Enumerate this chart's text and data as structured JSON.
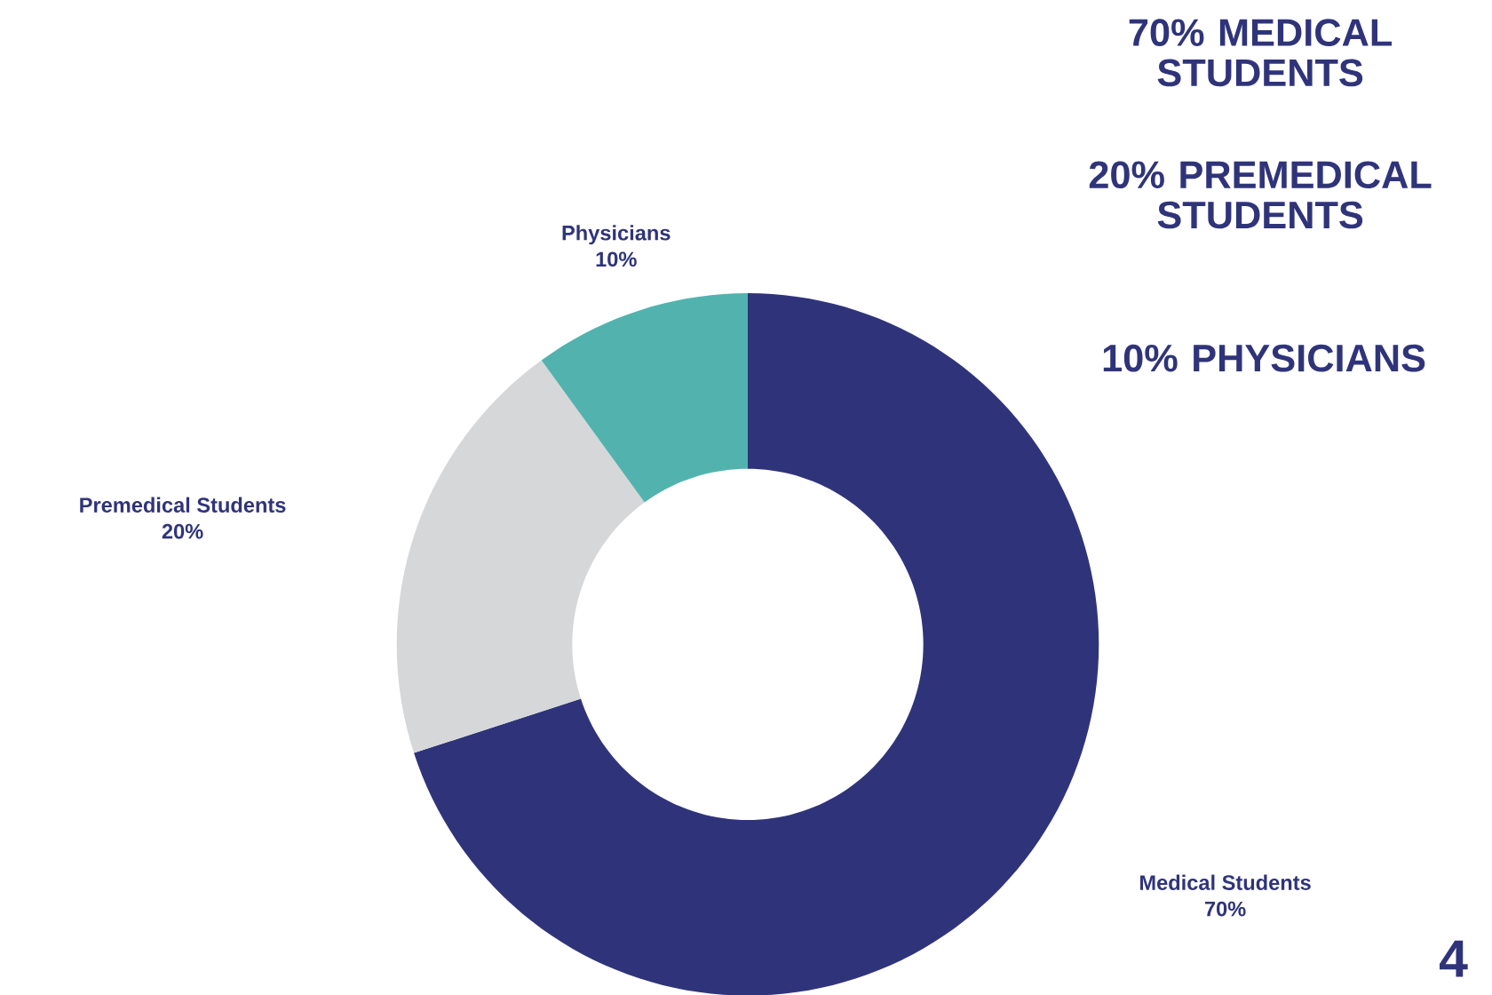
{
  "chart_data": {
    "type": "donut",
    "categories": [
      "Medical Students",
      "Premedical Students",
      "Physicians"
    ],
    "values": [
      70,
      20,
      10
    ],
    "value_labels": [
      "70%",
      "20%",
      "10%"
    ],
    "colors": [
      "#2f347a",
      "#d6d7d9",
      "#52b3ae"
    ],
    "annotations": [
      "70% MEDICAL STUDENTS",
      "20% PREMEDICAL STUDENTS",
      "10% PHYSICIANS",
      "4"
    ]
  }
}
